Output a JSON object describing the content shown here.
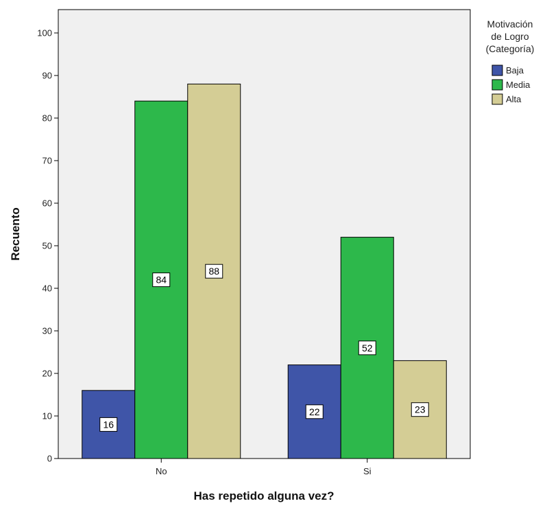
{
  "chart_data": {
    "type": "bar",
    "categories": [
      "No",
      "Si"
    ],
    "series": [
      {
        "name": "Baja",
        "values": [
          16,
          22
        ],
        "color": "#3f55a8"
      },
      {
        "name": "Media",
        "values": [
          84,
          52
        ],
        "color": "#2db84b"
      },
      {
        "name": "Alta",
        "values": [
          88,
          23
        ],
        "color": "#d4cd95"
      }
    ],
    "xlabel": "Has repetido alguna vez?",
    "ylabel": "Recuento",
    "ylim": [
      0,
      100
    ],
    "yticks": [
      0,
      10,
      20,
      30,
      40,
      50,
      60,
      70,
      80,
      90,
      100
    ],
    "legend": {
      "title_lines": [
        "Motivación",
        "de Logro",
        "(Categoría)"
      ],
      "position": "top-right"
    },
    "plot_background": "#f0f0f0",
    "grid": false
  }
}
